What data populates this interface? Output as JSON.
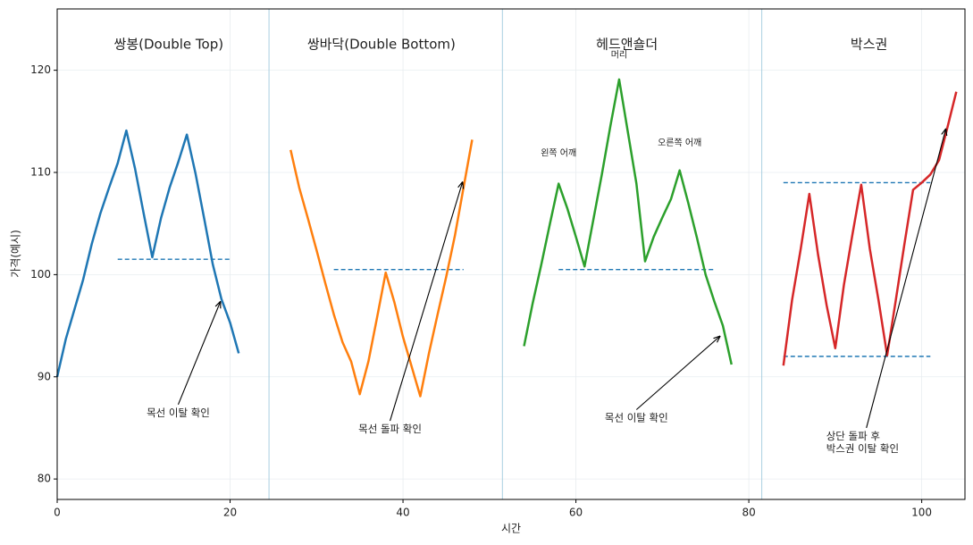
{
  "chart_data": {
    "type": "line",
    "xlabel": "시간",
    "ylabel": "가격(예시)",
    "xlim": [
      0,
      105
    ],
    "ylim": [
      78,
      126
    ],
    "xticks": [
      0,
      20,
      40,
      60,
      80,
      100
    ],
    "yticks": [
      80,
      90,
      100,
      110,
      120
    ],
    "grid": true,
    "series": [
      {
        "color": "#1f77b4",
        "x": [
          0,
          1,
          2,
          3,
          4,
          5,
          6,
          7,
          8,
          9,
          10,
          11,
          12,
          13,
          14,
          15,
          16,
          17,
          18,
          19,
          20,
          21
        ],
        "values": [
          90,
          93.7,
          96.6,
          99.5,
          103,
          106,
          108.5,
          110.9,
          114.1,
          110.4,
          106,
          101.7,
          105.5,
          108.5,
          111,
          113.7,
          109.9,
          105.5,
          101,
          97.6,
          95.3,
          92.3
        ]
      },
      {
        "color": "#ff7f0e",
        "x": [
          27,
          28,
          29,
          30,
          31,
          32,
          33,
          34,
          35,
          36,
          37,
          38,
          39,
          40,
          41,
          42,
          43,
          44,
          45,
          46,
          47,
          48
        ],
        "values": [
          112.2,
          108.5,
          105.5,
          102.4,
          99.2,
          96.1,
          93.4,
          91.5,
          88.3,
          91.5,
          95.8,
          100.2,
          97.3,
          93.9,
          91,
          88.1,
          92.3,
          96.1,
          99.8,
          103.8,
          108.5,
          113.2
        ]
      },
      {
        "color": "#2ca02c",
        "x": [
          54,
          55,
          56,
          57,
          58,
          59,
          60,
          61,
          62,
          63,
          64,
          65,
          66,
          67,
          68,
          69,
          70,
          71,
          72,
          73,
          74,
          75,
          76,
          77,
          78
        ],
        "values": [
          93,
          97.2,
          101,
          105,
          108.9,
          106.5,
          103.7,
          100.8,
          105.3,
          109.8,
          114.6,
          119.1,
          114,
          108.9,
          101.3,
          103.7,
          105.6,
          107.4,
          110.2,
          107,
          103.6,
          100,
          97.4,
          95,
          91.2
        ]
      },
      {
        "color": "#d62728",
        "x": [
          84,
          85,
          86,
          87,
          88,
          89,
          90,
          91,
          92,
          93,
          94,
          95,
          96,
          97,
          98,
          99,
          100,
          101,
          102,
          103,
          104
        ],
        "values": [
          91.1,
          97.5,
          102.5,
          107.9,
          102,
          97,
          92.8,
          99,
          104,
          108.8,
          102.5,
          97.5,
          92.1,
          97.5,
          103,
          108.3,
          109,
          109.8,
          111.2,
          114.5,
          117.9
        ]
      }
    ],
    "reference_lines": [
      {
        "y": 101.5,
        "x": [
          7,
          20
        ],
        "color": "#1f77b4"
      },
      {
        "y": 100.5,
        "x": [
          32,
          47
        ],
        "color": "#1f77b4"
      },
      {
        "y": 100.5,
        "x": [
          58,
          76
        ],
        "color": "#1f77b4"
      },
      {
        "y": 109,
        "x": [
          84,
          101
        ],
        "color": "#1f77b4"
      },
      {
        "y": 92,
        "x": [
          84,
          101
        ],
        "color": "#1f77b4"
      }
    ],
    "separators": [
      24.5,
      51.5,
      81.5
    ],
    "separator_color": "#a9cfe0",
    "pattern_titles": [
      {
        "text": "쌍봉(Double Top)",
        "x": 12.9,
        "y": 122.5
      },
      {
        "text": "쌍바닥(Double Bottom)",
        "x": 37.5,
        "y": 122.5
      },
      {
        "text": "헤드앤숄더",
        "x": 65.9,
        "y": 122.5
      },
      {
        "text": "박스권",
        "x": 93.9,
        "y": 122.5
      }
    ],
    "labels": [
      {
        "text": "왼쪽 어깨",
        "x": 58,
        "y": 111.9
      },
      {
        "text": "머리",
        "x": 65,
        "y": 121.5
      },
      {
        "text": "오른쪽 어깨",
        "x": 72,
        "y": 112.9
      }
    ],
    "annotations": [
      {
        "text": [
          "목선 이탈 확인"
        ],
        "x": 18.9,
        "y": 97.4,
        "text_x": 14,
        "text_y": 86.5
      },
      {
        "text": [
          "목선 돌파 확인"
        ],
        "x": 46.9,
        "y": 109.1,
        "text_x": 38.5,
        "text_y": 84.9
      },
      {
        "text": [
          "목선 이탈 확인"
        ],
        "x": 76.7,
        "y": 94,
        "text_x": 67,
        "text_y": 86
      },
      {
        "text": [
          "상단 돌파 후",
          "박스권 이탈 확인"
        ],
        "x": 102.8,
        "y": 114.3,
        "text_x": 93.6,
        "text_y": 83.6
      }
    ]
  }
}
